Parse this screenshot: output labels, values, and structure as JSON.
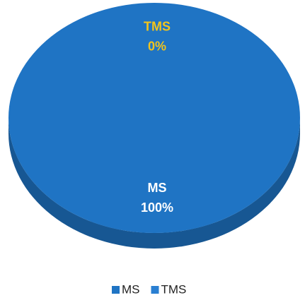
{
  "chart_data": {
    "type": "pie",
    "categories": [
      "MS",
      "TMS"
    ],
    "values": [
      100,
      0
    ],
    "value_labels": [
      "100%",
      "0%"
    ],
    "colors": [
      "#1f74c4",
      "#2a7fd2"
    ],
    "label_colors": [
      "#ffffff",
      "#f2c41c"
    ],
    "legend": "bottom"
  }
}
